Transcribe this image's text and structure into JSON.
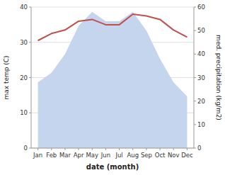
{
  "chart_data": {
    "type": "line",
    "xlabel": "date (month)",
    "ylabel": "max temp (C)",
    "y2label": "med. precipitation (kg/m2)",
    "categories": [
      "Jan",
      "Feb",
      "Mar",
      "Apr",
      "May",
      "Jun",
      "Jul",
      "Aug",
      "Sep",
      "Oct",
      "Nov",
      "Dec"
    ],
    "series": [
      {
        "type": "area",
        "axis": "y2",
        "color": "#c5d5ee",
        "values": [
          28,
          32,
          40,
          52,
          58,
          54,
          54,
          58,
          50,
          38,
          28,
          22
        ]
      },
      {
        "type": "line",
        "color": "#c0504d",
        "values": [
          30.5,
          32.5,
          33.5,
          36.0,
          36.5,
          35.0,
          35.0,
          38.0,
          37.5,
          36.5,
          33.5,
          31.5
        ]
      }
    ],
    "ylim": [
      0,
      40
    ],
    "yticks": [
      0,
      10,
      20,
      30,
      40
    ],
    "y2lim": [
      0,
      60
    ],
    "y2ticks": [
      0,
      10,
      20,
      30,
      40,
      50,
      60
    ],
    "grid": true
  }
}
